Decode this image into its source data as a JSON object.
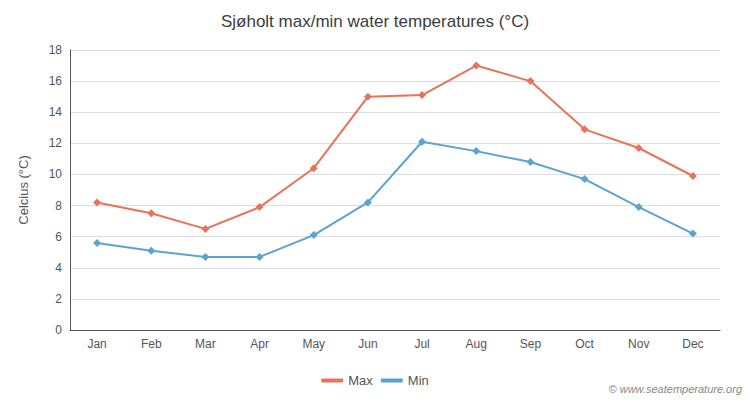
{
  "chart_data": {
    "type": "line",
    "title": "Sjøholt max/min water temperatures (°C)",
    "ylabel": "Celcius (°C)",
    "categories": [
      "Jan",
      "Feb",
      "Mar",
      "Apr",
      "May",
      "Jun",
      "Jul",
      "Aug",
      "Sep",
      "Oct",
      "Nov",
      "Dec"
    ],
    "series": [
      {
        "name": "Max",
        "color": "#E8735A",
        "values": [
          8.2,
          7.5,
          6.5,
          7.9,
          10.4,
          15.0,
          15.1,
          17.0,
          16.0,
          12.9,
          11.7,
          9.9
        ]
      },
      {
        "name": "Min",
        "color": "#5BA4CF",
        "values": [
          5.6,
          5.1,
          4.7,
          4.7,
          6.1,
          8.2,
          12.1,
          11.5,
          10.8,
          9.7,
          7.9,
          6.2
        ]
      }
    ],
    "ylim": [
      0,
      18
    ],
    "yticks": [
      0,
      2,
      4,
      6,
      8,
      10,
      12,
      14,
      16,
      18
    ],
    "grid": true,
    "legend": "bottom",
    "marker": "diamond",
    "annotations": [
      "© www.seatemperature.org"
    ]
  }
}
